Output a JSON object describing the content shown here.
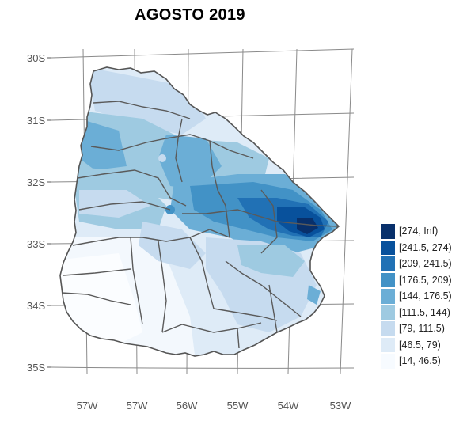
{
  "title": "AGOSTO 2019",
  "axes": {
    "y_ticks": [
      "30S",
      "31S",
      "32S",
      "33S",
      "34S",
      "35S"
    ],
    "x_ticks": [
      "57W",
      "57W",
      "56W",
      "55W",
      "54W",
      "53W"
    ]
  },
  "legend": [
    {
      "label": "[274, Inf)",
      "color": "#08306b"
    },
    {
      "label": "[241.5, 274)",
      "color": "#08519c"
    },
    {
      "label": "[209, 241.5)",
      "color": "#2171b5"
    },
    {
      "label": "[176.5, 209)",
      "color": "#4292c6"
    },
    {
      "label": "[144, 176.5)",
      "color": "#6baed6"
    },
    {
      "label": "[111.5, 144)",
      "color": "#9ecae1"
    },
    {
      "label": "[79, 111.5)",
      "color": "#c6dbef"
    },
    {
      "label": "[46.5, 79)",
      "color": "#deebf7"
    },
    {
      "label": "[14, 46.5)",
      "color": "#f7fbff"
    }
  ]
}
